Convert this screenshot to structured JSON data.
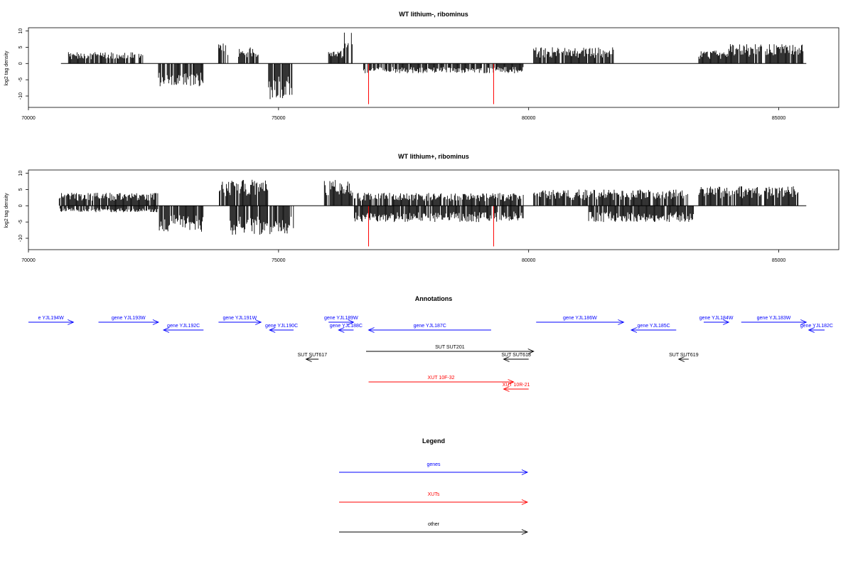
{
  "colors": {
    "gene": "#0000ff",
    "xut": "#ff0000",
    "other": "#000000",
    "axis": "#000000"
  },
  "chart_data": [
    {
      "type": "bar",
      "title": "WT lithium-, ribominus",
      "ylabel": "log2 tag density",
      "xlim": [
        70000,
        86200
      ],
      "ylim": [
        -13.5,
        11
      ],
      "x_ticks": [
        70000,
        75000,
        80000,
        85000
      ],
      "y_ticks": [
        10,
        5,
        0,
        -5,
        -10
      ],
      "markers": [
        {
          "x": 76800,
          "y": -12.5,
          "color": "#ff0000"
        },
        {
          "x": 79300,
          "y": -12.5,
          "color": "#ff0000"
        }
      ],
      "segments": [
        {
          "start": 70800,
          "end": 72300,
          "amplitude": 3.5,
          "sign": 1
        },
        {
          "start": 72600,
          "end": 73500,
          "amplitude": 7,
          "sign": -1
        },
        {
          "start": 73800,
          "end": 74000,
          "amplitude": 7,
          "sign": 1
        },
        {
          "start": 74200,
          "end": 74600,
          "amplitude": 5,
          "sign": 1
        },
        {
          "start": 74800,
          "end": 75300,
          "amplitude": 11,
          "sign": -1
        },
        {
          "start": 76000,
          "end": 76300,
          "amplitude": 4,
          "sign": 1
        },
        {
          "start": 76300,
          "end": 76500,
          "amplitude": 10,
          "sign": 1
        },
        {
          "start": 76700,
          "end": 79900,
          "amplitude": 3,
          "sign": -1
        },
        {
          "start": 80100,
          "end": 81700,
          "amplitude": 5,
          "sign": 1
        },
        {
          "start": 83400,
          "end": 84000,
          "amplitude": 4,
          "sign": 1
        },
        {
          "start": 84000,
          "end": 85500,
          "amplitude": 6,
          "sign": 1
        }
      ]
    },
    {
      "type": "bar",
      "title": "WT lithium+, ribominus",
      "ylabel": "log2 tag density",
      "xlim": [
        70000,
        86200
      ],
      "ylim": [
        -13.5,
        11
      ],
      "x_ticks": [
        70000,
        75000,
        80000,
        85000
      ],
      "y_ticks": [
        10,
        5,
        0,
        -5,
        -10
      ],
      "markers": [
        {
          "x": 76800,
          "y": -12.5,
          "color": "#ff0000"
        },
        {
          "x": 79300,
          "y": -12.5,
          "color": "#ff0000"
        }
      ],
      "segments": [
        {
          "start": 70600,
          "end": 72600,
          "amplitude": 4,
          "sign": 1
        },
        {
          "start": 70600,
          "end": 72600,
          "amplitude": 2,
          "sign": -1
        },
        {
          "start": 72600,
          "end": 73500,
          "amplitude": 8,
          "sign": -1
        },
        {
          "start": 73800,
          "end": 74800,
          "amplitude": 8,
          "sign": 1
        },
        {
          "start": 74000,
          "end": 75300,
          "amplitude": 9,
          "sign": -1
        },
        {
          "start": 75900,
          "end": 76500,
          "amplitude": 8,
          "sign": 1
        },
        {
          "start": 76500,
          "end": 79900,
          "amplitude": 4,
          "sign": 1
        },
        {
          "start": 76500,
          "end": 79900,
          "amplitude": 5,
          "sign": -1
        },
        {
          "start": 80100,
          "end": 83200,
          "amplitude": 5,
          "sign": 1
        },
        {
          "start": 81200,
          "end": 83300,
          "amplitude": 5,
          "sign": -1
        },
        {
          "start": 83400,
          "end": 85400,
          "amplitude": 6,
          "sign": 1
        }
      ]
    }
  ],
  "annotations": {
    "title": "Annotations",
    "items": [
      {
        "label": "e YJL194W",
        "start": 70000,
        "end": 70900,
        "strand": "+",
        "row": 0,
        "kind": "gene"
      },
      {
        "label": "gene YJL193W",
        "start": 71400,
        "end": 72600,
        "strand": "+",
        "row": 0,
        "kind": "gene"
      },
      {
        "label": "gene YJL192C",
        "start": 72700,
        "end": 73500,
        "strand": "-",
        "row": 1,
        "kind": "gene"
      },
      {
        "label": "gene YJL191W",
        "start": 73800,
        "end": 74650,
        "strand": "+",
        "row": 0,
        "kind": "gene"
      },
      {
        "label": "gene YJL190C",
        "start": 74820,
        "end": 75300,
        "strand": "-",
        "row": 1,
        "kind": "gene"
      },
      {
        "label": "gene YJL189W",
        "start": 76000,
        "end": 76500,
        "strand": "+",
        "row": 0,
        "kind": "gene"
      },
      {
        "label": "gene YJL188C",
        "start": 76200,
        "end": 76500,
        "strand": "-",
        "row": 1,
        "kind": "gene"
      },
      {
        "label": "gene YJL187C",
        "start": 76800,
        "end": 79250,
        "strand": "-",
        "row": 1,
        "kind": "gene"
      },
      {
        "label": "gene YJL186W",
        "start": 80150,
        "end": 81900,
        "strand": "+",
        "row": 0,
        "kind": "gene"
      },
      {
        "label": "gene YJL185C",
        "start": 82050,
        "end": 82950,
        "strand": "-",
        "row": 1,
        "kind": "gene"
      },
      {
        "label": "gene YJL184W",
        "start": 83500,
        "end": 84000,
        "strand": "+",
        "row": 0,
        "kind": "gene"
      },
      {
        "label": "gene YJL183W",
        "start": 84250,
        "end": 85550,
        "strand": "+",
        "row": 0,
        "kind": "gene"
      },
      {
        "label": "gene YJL182C",
        "start": 85600,
        "end": 85950,
        "strand": "-",
        "row": 1,
        "kind": "gene"
      },
      {
        "label": "SUT SUT617",
        "start": 75550,
        "end": 75800,
        "strand": "-",
        "row": 3,
        "kind": "other"
      },
      {
        "label": "SUT SUT201",
        "start": 76750,
        "end": 80100,
        "strand": "+",
        "row": 2,
        "kind": "other"
      },
      {
        "label": "SUT SUT618",
        "start": 79500,
        "end": 80000,
        "strand": "-",
        "row": 3,
        "kind": "other"
      },
      {
        "label": "SUT SUT619",
        "start": 83000,
        "end": 83200,
        "strand": "-",
        "row": 3,
        "kind": "other"
      },
      {
        "label": "XUT 10F-32",
        "start": 76800,
        "end": 79700,
        "strand": "+",
        "row": 4,
        "kind": "xut"
      },
      {
        "label": "XUT 10R-21",
        "start": 79500,
        "end": 80000,
        "strand": "-",
        "row": 5,
        "kind": "xut"
      }
    ]
  },
  "legend": {
    "title": "Legend",
    "items": [
      {
        "label": "genes",
        "kind": "gene"
      },
      {
        "label": "XUTs",
        "kind": "xut"
      },
      {
        "label": "other",
        "kind": "other"
      }
    ]
  }
}
